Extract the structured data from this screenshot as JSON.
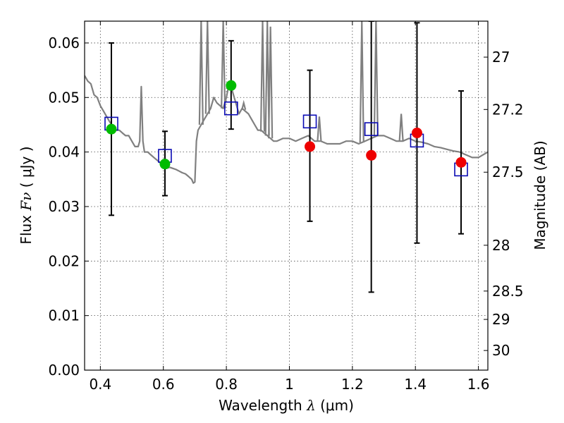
{
  "chart_data": {
    "type": "scatter",
    "title": "",
    "xlabel_prefix": "Wavelength  ",
    "xlabel_symbol": "λ",
    "xlabel_unit": " (μm)",
    "ylabel_prefix": "Flux  ",
    "ylabel_symbol": "Fν",
    "ylabel_unit": "  ( μJy )",
    "y2label": "Magnitude (AB)",
    "xlim": [
      0.35,
      1.63
    ],
    "ylim": [
      0.0,
      0.064
    ],
    "grid": true,
    "x_ticks": [
      {
        "value": 0.4,
        "label": "0.4"
      },
      {
        "value": 0.6,
        "label": "0.6"
      },
      {
        "value": 0.8,
        "label": "0.8"
      },
      {
        "value": 1.0,
        "label": "1"
      },
      {
        "value": 1.2,
        "label": "1.2"
      },
      {
        "value": 1.4,
        "label": "1.4"
      },
      {
        "value": 1.6,
        "label": "1.6"
      }
    ],
    "y_ticks": [
      {
        "value": 0.0,
        "label": "0.00"
      },
      {
        "value": 0.01,
        "label": "0.01"
      },
      {
        "value": 0.02,
        "label": "0.02"
      },
      {
        "value": 0.03,
        "label": "0.03"
      },
      {
        "value": 0.04,
        "label": "0.04"
      },
      {
        "value": 0.05,
        "label": "0.05"
      },
      {
        "value": 0.06,
        "label": "0.06"
      }
    ],
    "y2_ticks": [
      {
        "label": "27",
        "flux": 0.0574
      },
      {
        "label": "27.2",
        "flux": 0.0478
      },
      {
        "label": "27.5",
        "flux": 0.0363
      },
      {
        "label": "28",
        "flux": 0.0229
      },
      {
        "label": "28.5",
        "flux": 0.0145
      },
      {
        "label": "29",
        "flux": 0.0093
      },
      {
        "label": "30",
        "flux": 0.0036
      }
    ],
    "colors": {
      "model": "#808080",
      "model_points": "#0a0ab4",
      "green_points": "#00bb00",
      "red_points": "#ee0000",
      "errorbars": "#000000"
    },
    "model_spectrum": {
      "x": [
        0.35,
        0.36,
        0.37,
        0.38,
        0.39,
        0.4,
        0.41,
        0.42,
        0.43,
        0.44,
        0.45,
        0.46,
        0.47,
        0.48,
        0.49,
        0.5,
        0.51,
        0.52,
        0.525,
        0.53,
        0.535,
        0.54,
        0.55,
        0.56,
        0.57,
        0.58,
        0.59,
        0.6,
        0.61,
        0.62,
        0.63,
        0.64,
        0.65,
        0.66,
        0.67,
        0.68,
        0.69,
        0.695,
        0.7,
        0.705,
        0.71,
        0.72,
        0.73,
        0.74,
        0.75,
        0.76,
        0.77,
        0.78,
        0.79,
        0.8,
        0.81,
        0.82,
        0.83,
        0.84,
        0.85,
        0.86,
        0.87,
        0.88,
        0.89,
        0.9,
        0.91,
        0.92,
        0.93,
        0.94,
        0.95,
        0.96,
        0.98,
        1.0,
        1.02,
        1.04,
        1.06,
        1.08,
        1.1,
        1.12,
        1.14,
        1.16,
        1.18,
        1.2,
        1.22,
        1.24,
        1.26,
        1.28,
        1.3,
        1.32,
        1.34,
        1.36,
        1.38,
        1.4,
        1.42,
        1.44,
        1.46,
        1.48,
        1.5,
        1.52,
        1.54,
        1.56,
        1.58,
        1.6,
        1.63
      ],
      "y": [
        0.054,
        0.053,
        0.0525,
        0.0505,
        0.05,
        0.0485,
        0.0475,
        0.0465,
        0.0455,
        0.0445,
        0.044,
        0.044,
        0.0435,
        0.043,
        0.043,
        0.042,
        0.041,
        0.041,
        0.042,
        0.052,
        0.042,
        0.04,
        0.04,
        0.0395,
        0.039,
        0.0385,
        0.038,
        0.0375,
        0.037,
        0.0372,
        0.037,
        0.0368,
        0.0365,
        0.0362,
        0.036,
        0.0355,
        0.035,
        0.0343,
        0.0345,
        0.042,
        0.044,
        0.045,
        0.046,
        0.047,
        0.048,
        0.05,
        0.049,
        0.0485,
        0.048,
        0.05,
        0.053,
        0.051,
        0.049,
        0.047,
        0.048,
        0.0475,
        0.047,
        0.046,
        0.045,
        0.044,
        0.044,
        0.0435,
        0.043,
        0.0425,
        0.042,
        0.042,
        0.0425,
        0.0425,
        0.042,
        0.0425,
        0.043,
        0.042,
        0.042,
        0.0415,
        0.0415,
        0.0415,
        0.042,
        0.042,
        0.0415,
        0.042,
        0.0425,
        0.043,
        0.043,
        0.0425,
        0.042,
        0.042,
        0.0425,
        0.042,
        0.0418,
        0.0415,
        0.041,
        0.0408,
        0.0405,
        0.0402,
        0.04,
        0.0395,
        0.039,
        0.039,
        0.04
      ]
    },
    "model_emission_lines": [
      {
        "x": 0.72,
        "peak": 0.064
      },
      {
        "x": 0.74,
        "peak": 0.064
      },
      {
        "x": 0.79,
        "peak": 0.064
      },
      {
        "x": 0.855,
        "peak": 0.049
      },
      {
        "x": 0.915,
        "peak": 0.064
      },
      {
        "x": 0.93,
        "peak": 0.064
      },
      {
        "x": 0.94,
        "peak": 0.063
      },
      {
        "x": 1.095,
        "peak": 0.0465
      },
      {
        "x": 1.23,
        "peak": 0.064
      },
      {
        "x": 1.275,
        "peak": 0.064
      },
      {
        "x": 1.355,
        "peak": 0.047
      }
    ],
    "model_band_points": {
      "x": [
        0.435,
        0.605,
        0.815,
        1.065,
        1.26,
        1.405,
        1.545
      ],
      "y": [
        0.0452,
        0.0393,
        0.048,
        0.0456,
        0.0442,
        0.0421,
        0.0368
      ]
    },
    "observed_points": [
      {
        "x": 0.435,
        "y": 0.0442,
        "lo": 0.0284,
        "hi": 0.06,
        "group": "green"
      },
      {
        "x": 0.605,
        "y": 0.0378,
        "lo": 0.032,
        "hi": 0.0438,
        "group": "green"
      },
      {
        "x": 0.815,
        "y": 0.0522,
        "lo": 0.0442,
        "hi": 0.0604,
        "group": "green"
      },
      {
        "x": 1.065,
        "y": 0.041,
        "lo": 0.0273,
        "hi": 0.055,
        "group": "red"
      },
      {
        "x": 1.26,
        "y": 0.0394,
        "lo": 0.0143,
        "hi": 0.064,
        "group": "red"
      },
      {
        "x": 1.405,
        "y": 0.0435,
        "lo": 0.0233,
        "hi": 0.0637,
        "group": "red"
      },
      {
        "x": 1.545,
        "y": 0.0381,
        "lo": 0.025,
        "hi": 0.0512,
        "group": "red"
      }
    ]
  }
}
